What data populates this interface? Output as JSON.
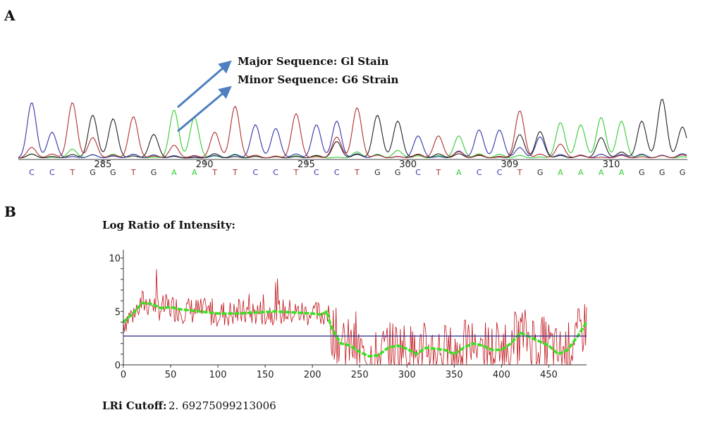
{
  "panel_a": {
    "label": "A",
    "annotation_major": "Major Sequence: Gl Stain",
    "annotation_minor": "Minor Sequence: G6 Strain"
  },
  "panel_b": {
    "label": "B",
    "title": "Log Ratio of Intensity:",
    "cutoff_label": "LRi Cutoff:",
    "cutoff_value": "2. 69275099213006"
  },
  "colors": {
    "A": "#33cc33",
    "C": "#3333aa",
    "G": "#222222",
    "T": "#b03030",
    "raw": "#c0141a",
    "smooth": "#39e01f",
    "cutoff": "#3a3a9a"
  },
  "chart_data": [
    {
      "type": "line",
      "subtype": "chromatogram",
      "bases": [
        "C",
        "C",
        "T",
        "G",
        "G",
        "T",
        "G",
        "A",
        "A",
        "T",
        "T",
        "C",
        "C",
        "T",
        "C",
        "C",
        "T",
        "G",
        "G",
        "C",
        "T",
        "A",
        "C",
        "C",
        "T",
        "G",
        "A",
        "A",
        "A",
        "A",
        "G",
        "G",
        "G"
      ],
      "position_ticks": [
        "285",
        "290",
        "295",
        "300",
        "309",
        "310"
      ],
      "peak_heights": [
        0.75,
        0.35,
        0.75,
        0.58,
        0.53,
        0.56,
        0.32,
        0.65,
        0.55,
        0.35,
        0.7,
        0.45,
        0.4,
        0.6,
        0.45,
        0.5,
        0.68,
        0.58,
        0.5,
        0.3,
        0.3,
        0.3,
        0.38,
        0.38,
        0.64,
        0.36,
        0.48,
        0.45,
        0.55,
        0.5,
        0.5,
        0.8,
        0.42
      ]
    },
    {
      "type": "line",
      "title": "Log Ratio of Intensity:",
      "x_ticks": [
        "0",
        "50",
        "100",
        "150",
        "200",
        "250",
        "300",
        "350",
        "400",
        "450"
      ],
      "y_ticks": [
        "0",
        "5",
        "10"
      ],
      "xlim": [
        0,
        490
      ],
      "ylim": [
        0,
        10.5
      ],
      "cutoff": 2.69275099213006,
      "smoothed": {
        "x": [
          0,
          10,
          20,
          30,
          40,
          50,
          60,
          80,
          100,
          120,
          140,
          160,
          180,
          200,
          210,
          215,
          220,
          230,
          240,
          250,
          260,
          270,
          280,
          290,
          300,
          310,
          320,
          330,
          340,
          350,
          360,
          370,
          380,
          390,
          400,
          410,
          420,
          430,
          440,
          450,
          460,
          470,
          480,
          490
        ],
        "y": [
          4.0,
          4.8,
          5.8,
          5.7,
          5.3,
          5.4,
          5.2,
          5.0,
          4.8,
          4.8,
          4.9,
          5.0,
          4.9,
          4.8,
          4.7,
          5.0,
          3.5,
          2.0,
          1.8,
          1.2,
          0.8,
          0.9,
          1.6,
          1.8,
          1.5,
          1.0,
          1.6,
          1.5,
          1.4,
          1.0,
          1.6,
          2.0,
          1.8,
          1.4,
          1.4,
          2.0,
          3.0,
          2.6,
          2.2,
          1.8,
          1.0,
          1.4,
          2.6,
          4.0
        ]
      }
    }
  ]
}
